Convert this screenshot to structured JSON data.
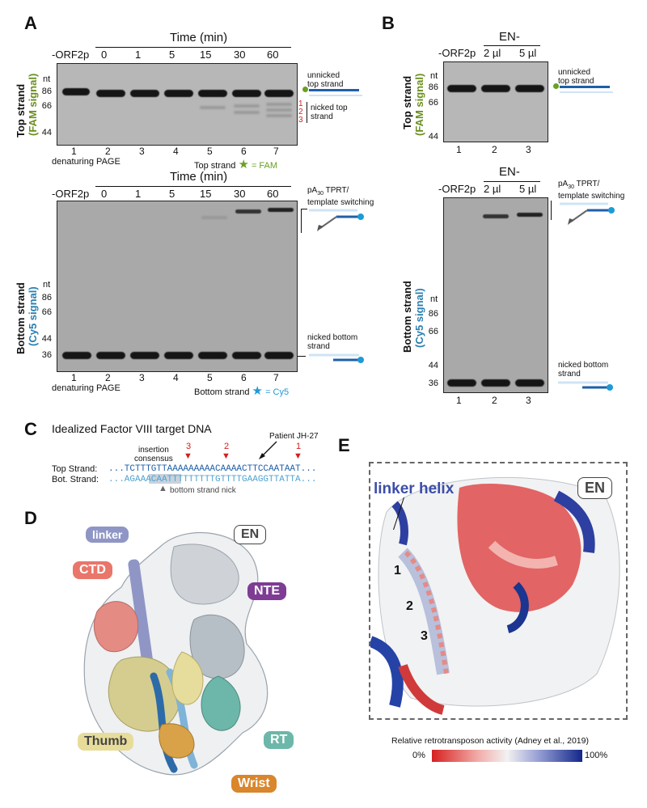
{
  "panels": {
    "a": "A",
    "b": "B",
    "c": "C",
    "d": "D",
    "e": "E"
  },
  "a_top": {
    "header": "Time (min)",
    "col_labels": [
      "-ORF2p",
      "0",
      "1",
      "5",
      "15",
      "30",
      "60"
    ],
    "lanes": [
      "1",
      "2",
      "3",
      "4",
      "5",
      "6",
      "7"
    ],
    "nt": "nt",
    "ticks": [
      "86",
      "66",
      "44"
    ],
    "ylabel_main": "Top strand",
    "ylabel_sub": "(FAM signal)",
    "left_note": "denaturing PAGE",
    "right_note": "Top strand",
    "right_note_eq": "= FAM",
    "ann_unnicked": "unnicked\ntop strand",
    "ann_nicked": "nicked top\nstrand",
    "nick_nums": [
      "1",
      "2",
      "3"
    ]
  },
  "a_bot": {
    "header": "Time (min)",
    "col_labels": [
      "-ORF2p",
      "0",
      "1",
      "5",
      "15",
      "30",
      "60"
    ],
    "lanes": [
      "1",
      "2",
      "3",
      "4",
      "5",
      "6",
      "7"
    ],
    "nt": "nt",
    "ticks": [
      "86",
      "66",
      "44",
      "36"
    ],
    "ylabel_main": "Bottom strand",
    "ylabel_sub": "(Cy5 signal)",
    "left_note": "denaturing PAGE",
    "right_note": "Bottom strand",
    "right_note_eq": "= Cy5",
    "ann_tprt_1": "pA",
    "ann_tprt_sub": "30",
    "ann_tprt_2": " TPRT/",
    "ann_tprt_3": "template switching",
    "ann_nicked": "nicked bottom\nstrand"
  },
  "b_top": {
    "header": "EN-",
    "col_labels": [
      "-ORF2p",
      "2 µl",
      "5 µl"
    ],
    "lanes": [
      "1",
      "2",
      "3"
    ],
    "ticks": [
      "86",
      "66",
      "44"
    ],
    "nt": "nt",
    "ylabel_main": "Top strand",
    "ylabel_sub": "(FAM signal)",
    "ann_unnicked": "unnicked\ntop strand"
  },
  "b_bot": {
    "header": "EN-",
    "col_labels": [
      "-ORF2p",
      "2 µl",
      "5 µl"
    ],
    "lanes": [
      "1",
      "2",
      "3"
    ],
    "ticks": [
      "86",
      "66",
      "44",
      "36"
    ],
    "nt": "nt",
    "ylabel_main": "Bottom strand",
    "ylabel_sub": "(Cy5 signal)",
    "ann_tprt_1": "pA",
    "ann_tprt_sub": "30",
    "ann_tprt_2": " TPRT/",
    "ann_tprt_3": "template switching",
    "ann_nicked": "nicked bottom\nstrand"
  },
  "c": {
    "title": "Idealized Factor VIII target DNA",
    "insertion": "insertion\nconsensus",
    "patient": "Patient JH-27",
    "nums": [
      "3",
      "2",
      "1"
    ],
    "top_label": "Top Strand:",
    "top_seq": "...TCTTTGTTAAAAAAAAACAAAACTTCCAATAAT...",
    "bot_label": "Bot. Strand:",
    "bot_seq": "...AGAAACAATTTTTTTTTGTTTTGAAGGTTATTA...",
    "nick_label": "bottom strand nick"
  },
  "d": {
    "labels": {
      "linker": "linker",
      "en": "EN",
      "ctd": "CTD",
      "nte": "NTE",
      "thumb": "Thumb",
      "rt": "RT",
      "wrist": "Wrist"
    },
    "colors": {
      "linker": "#8f96c6",
      "ctd": "#e9766a",
      "nte": "#7e3c94",
      "thumb": "#e7dc9a",
      "rt": "#6cb7a9",
      "wrist": "#d9862c"
    }
  },
  "e": {
    "linker_helix": "linker helix",
    "en": "EN",
    "helix_nums": [
      "1",
      "2",
      "3"
    ],
    "legend_title": "Relative retrotransposon activity (Adney et al., 2019)",
    "legend_min": "0%",
    "legend_max": "100%"
  }
}
